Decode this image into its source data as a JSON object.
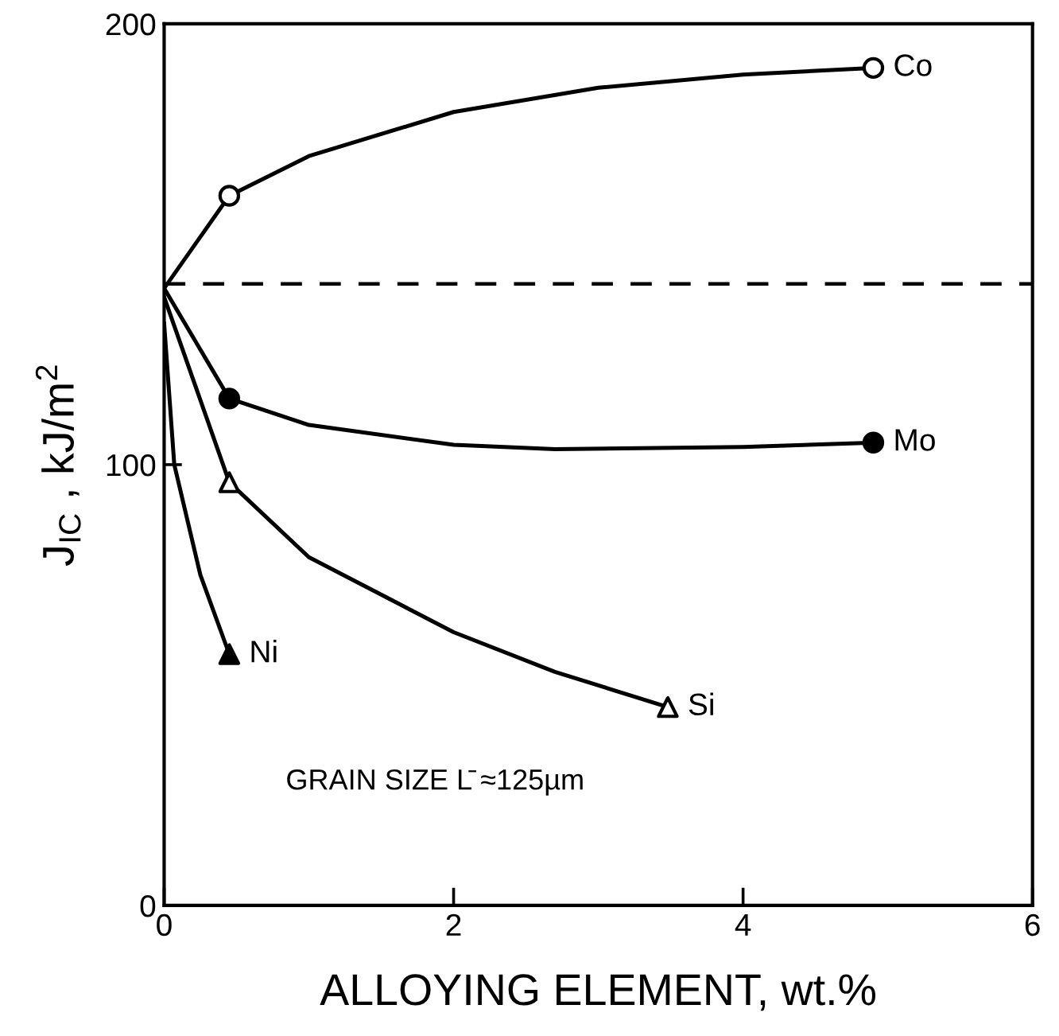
{
  "chart_data": {
    "type": "line",
    "xlabel": "ALLOYING ELEMENT, wt.%",
    "ylabel": "J$_{IC}$ , kJ/m$^{2}$",
    "xlim": [
      0,
      6
    ],
    "xticks": [
      0,
      2,
      4,
      6
    ],
    "ylim": [
      0,
      200
    ],
    "yticks": [
      0,
      100,
      200
    ],
    "grid": false,
    "legend": false,
    "series": [
      {
        "color": "#000000",
        "marker": "none",
        "x": [
          0,
          0.45,
          1,
          2,
          3,
          4,
          4.9
        ],
        "values": [
          140,
          161,
          170,
          180,
          185.5,
          188.5,
          190
        ]
      },
      {
        "color": "#000000",
        "marker": "none",
        "x": [
          0,
          0.45,
          1,
          2,
          2.7,
          4,
          4.9
        ],
        "values": [
          140,
          115,
          109,
          104.5,
          103.5,
          104,
          105
        ]
      },
      {
        "color": "#000000",
        "marker": "none",
        "x": [
          0,
          0.45,
          1,
          2,
          2.7,
          3.48
        ],
        "values": [
          138,
          96,
          79,
          62,
          53,
          45
        ]
      },
      {
        "color": "#000000",
        "marker": "none",
        "x": [
          0,
          0.07,
          0.25,
          0.45
        ],
        "values": [
          132,
          100,
          75,
          57
        ]
      },
      {
        "type": "scatter",
        "name": "Co",
        "color": "#ffffff",
        "marker": "circle",
        "x": [
          0.45,
          4.9
        ],
        "values": [
          161,
          190
        ]
      },
      {
        "type": "scatter",
        "name": "Mo",
        "color": "#000000",
        "marker": "circle",
        "x": [
          0.45,
          4.9
        ],
        "values": [
          115,
          105
        ]
      },
      {
        "type": "scatter",
        "name": "Si",
        "color": "#ffffff",
        "marker": "triangle",
        "x": [
          0.45,
          3.48
        ],
        "values": [
          96,
          45
        ]
      },
      {
        "type": "scatter",
        "name": "Ni",
        "color": "#000000",
        "marker": "triangle",
        "x": [
          0.45
        ],
        "values": [
          57
        ]
      }
    ],
    "ref_lines": [
      {
        "axis": "y",
        "value": 141,
        "line_style": "dashed",
        "color": "#000000"
      }
    ],
    "annotations": [
      "GRAIN SIZE L̄ ≈125µm"
    ]
  }
}
